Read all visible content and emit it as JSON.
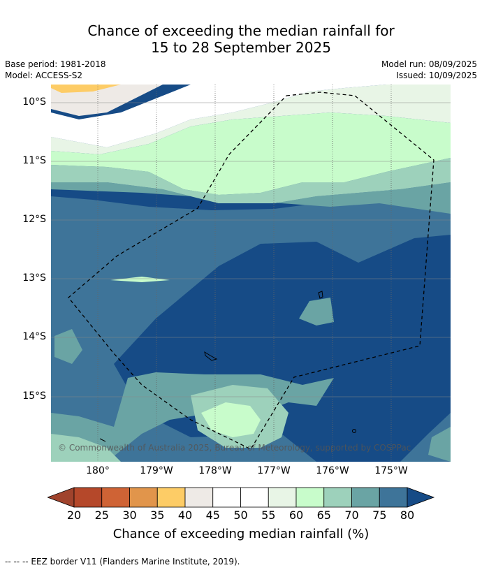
{
  "title": {
    "line1": "Chance of exceeding the median rainfall for",
    "line2": "15 to 28 September 2025"
  },
  "meta": {
    "base_period": "Base period: 1981-2018",
    "model": "Model: ACCESS-S2",
    "model_run": "Model run: 08/09/2025",
    "issued": "Issued: 10/09/2025"
  },
  "map": {
    "lat_labels": [
      "10°S",
      "11°S",
      "12°S",
      "13°S",
      "14°S",
      "15°S"
    ],
    "lon_labels": [
      "180°",
      "179°W",
      "178°W",
      "177°W",
      "176°W",
      "175°W"
    ],
    "copyright": "© Commonwealth of Australia 2025, Bureau of Meteorology, supported by COSPPac"
  },
  "colorbar": {
    "ticks": [
      "20",
      "25",
      "30",
      "35",
      "40",
      "45",
      "50",
      "55",
      "60",
      "65",
      "70",
      "75",
      "80"
    ],
    "colors": [
      "#a0432c",
      "#b5482a",
      "#cf6335",
      "#e1954b",
      "#fdcc66",
      "#eeeae6",
      "#ffffff",
      "#ffffff",
      "#e8f5e6",
      "#c8fccb",
      "#9dd1bb",
      "#6aa4a4",
      "#3e7499",
      "#164b86"
    ],
    "label": "Chance of exceeding median rainfall (%)"
  },
  "footer": "--  --  -- EEZ border V11 (Flanders Marine Institute, 2019)."
}
